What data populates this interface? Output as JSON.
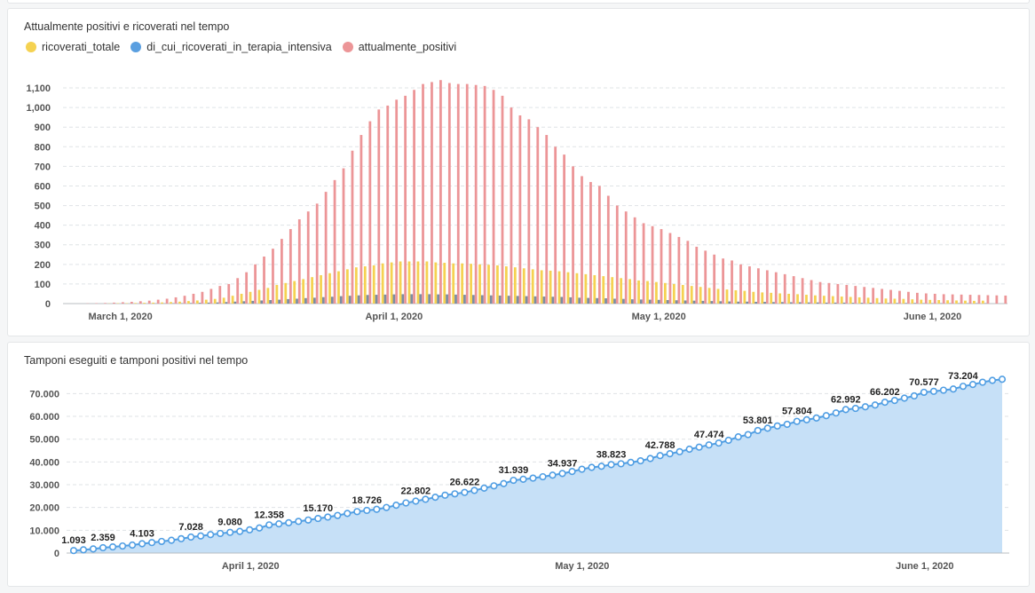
{
  "colors": {
    "ricoverati": "#f5d251",
    "terapia": "#5a9fe0",
    "positivi": "#ec9597",
    "area": "#c6e0f7",
    "line": "#509ee3",
    "grid": "#dfe3e6"
  },
  "chart_data": [
    {
      "type": "bar",
      "title": "Attualmente positivi e ricoverati nel tempo",
      "legend": "top-left",
      "grid": true,
      "ylim": [
        0,
        1150
      ],
      "yticks": [
        "0",
        "100",
        "200",
        "300",
        "400",
        "500",
        "600",
        "700",
        "800",
        "900",
        "1,000",
        "1,100"
      ],
      "xticks": [
        {
          "label": "March 1, 2020",
          "day": 0
        },
        {
          "label": "April 1, 2020",
          "day": 31
        },
        {
          "label": "May 1, 2020",
          "day": 61
        },
        {
          "label": "June 1, 2020",
          "day": 92
        }
      ],
      "start_date": "2020-02-24",
      "series": [
        {
          "name": "ricoverati_totale",
          "values": [
            0,
            0,
            0,
            0,
            0,
            1,
            2,
            2,
            3,
            4,
            5,
            6,
            8,
            10,
            13,
            16,
            20,
            24,
            30,
            40,
            50,
            60,
            70,
            80,
            95,
            105,
            115,
            125,
            135,
            145,
            155,
            165,
            175,
            185,
            190,
            195,
            205,
            210,
            215,
            215,
            215,
            215,
            210,
            208,
            205,
            205,
            203,
            200,
            198,
            195,
            190,
            185,
            180,
            175,
            170,
            168,
            165,
            160,
            155,
            150,
            145,
            140,
            135,
            130,
            125,
            118,
            115,
            110,
            105,
            100,
            95,
            90,
            85,
            80,
            75,
            72,
            68,
            65,
            60,
            57,
            55,
            52,
            50,
            48,
            45,
            42,
            40,
            38,
            36,
            34,
            32,
            30,
            28,
            26,
            25,
            24,
            22,
            20,
            19,
            18,
            17,
            16,
            15,
            14,
            15
          ]
        },
        {
          "name": "di_cui_ricoverati_in_terapia_intensiva",
          "values": [
            0,
            0,
            0,
            0,
            0,
            0,
            0,
            0,
            0,
            0,
            1,
            1,
            2,
            2,
            3,
            4,
            5,
            6,
            8,
            10,
            12,
            14,
            16,
            18,
            20,
            23,
            25,
            28,
            30,
            33,
            35,
            38,
            40,
            42,
            44,
            45,
            46,
            47,
            48,
            48,
            48,
            48,
            47,
            47,
            46,
            45,
            44,
            43,
            42,
            41,
            40,
            39,
            38,
            37,
            36,
            35,
            34,
            32,
            30,
            29,
            28,
            27,
            25,
            24,
            22,
            21,
            20,
            19,
            18,
            17,
            16,
            15,
            14,
            13,
            12,
            11,
            10,
            10,
            9,
            9,
            8,
            8,
            7,
            7,
            6,
            6,
            5,
            5,
            5,
            4,
            4,
            4,
            3,
            3,
            3,
            3,
            3,
            2,
            2,
            2,
            2,
            2,
            2,
            2,
            2
          ]
        },
        {
          "name": "attualmente_positivi",
          "values": [
            0,
            0,
            1,
            2,
            3,
            5,
            7,
            9,
            12,
            15,
            20,
            25,
            32,
            40,
            50,
            60,
            75,
            90,
            100,
            130,
            160,
            200,
            240,
            280,
            330,
            380,
            430,
            470,
            510,
            570,
            630,
            690,
            780,
            860,
            930,
            990,
            1010,
            1040,
            1060,
            1090,
            1120,
            1130,
            1140,
            1125,
            1120,
            1120,
            1115,
            1110,
            1090,
            1060,
            1000,
            960,
            940,
            900,
            860,
            800,
            760,
            700,
            650,
            620,
            600,
            550,
            500,
            470,
            440,
            410,
            395,
            380,
            360,
            340,
            320,
            290,
            270,
            250,
            230,
            220,
            200,
            190,
            180,
            170,
            160,
            150,
            140,
            130,
            120,
            110,
            105,
            100,
            95,
            90,
            85,
            80,
            75,
            70,
            65,
            60,
            55,
            52,
            50,
            48,
            47,
            46,
            45,
            44,
            43,
            42,
            41
          ]
        }
      ]
    },
    {
      "type": "area",
      "title": "Tamponi eseguiti e tamponi positivi nel tempo",
      "grid": true,
      "ylim": [
        0,
        76000
      ],
      "yticks": [
        "0",
        "10.000",
        "20.000",
        "30.000",
        "40.000",
        "50.000",
        "60.000",
        "70.000"
      ],
      "xticks": [
        {
          "label": "April 1, 2020",
          "day": 31
        },
        {
          "label": "May 1, 2020",
          "day": 61
        },
        {
          "label": "June 1, 2020",
          "day": 92
        }
      ],
      "start_date": "2020-03-16",
      "x_start_day": 15,
      "x_end_day": 99,
      "values": [
        1093,
        1400,
        1800,
        2359,
        2700,
        3100,
        3500,
        4103,
        4600,
        5100,
        5600,
        6300,
        7028,
        7500,
        8100,
        8600,
        9080,
        9500,
        10200,
        11000,
        12358,
        12800,
        13300,
        13900,
        14500,
        15170,
        15800,
        16500,
        17400,
        18200,
        18726,
        19200,
        20000,
        21000,
        22000,
        22802,
        23600,
        24500,
        25400,
        26000,
        26622,
        27500,
        28500,
        29500,
        30500,
        31939,
        32400,
        32900,
        33500,
        34200,
        34937,
        35800,
        36800,
        37600,
        38100,
        38823,
        39200,
        39800,
        40500,
        41500,
        42788,
        43600,
        44500,
        45600,
        46500,
        47474,
        48300,
        49500,
        51000,
        52000,
        53801,
        54800,
        55800,
        56500,
        57804,
        58500,
        59300,
        60300,
        61500,
        62992,
        63500,
        64200,
        65000,
        66202,
        67000,
        68000,
        69000,
        70577,
        71000,
        71500,
        72000,
        73204,
        74000,
        75000,
        75800,
        76300
      ]
    }
  ]
}
